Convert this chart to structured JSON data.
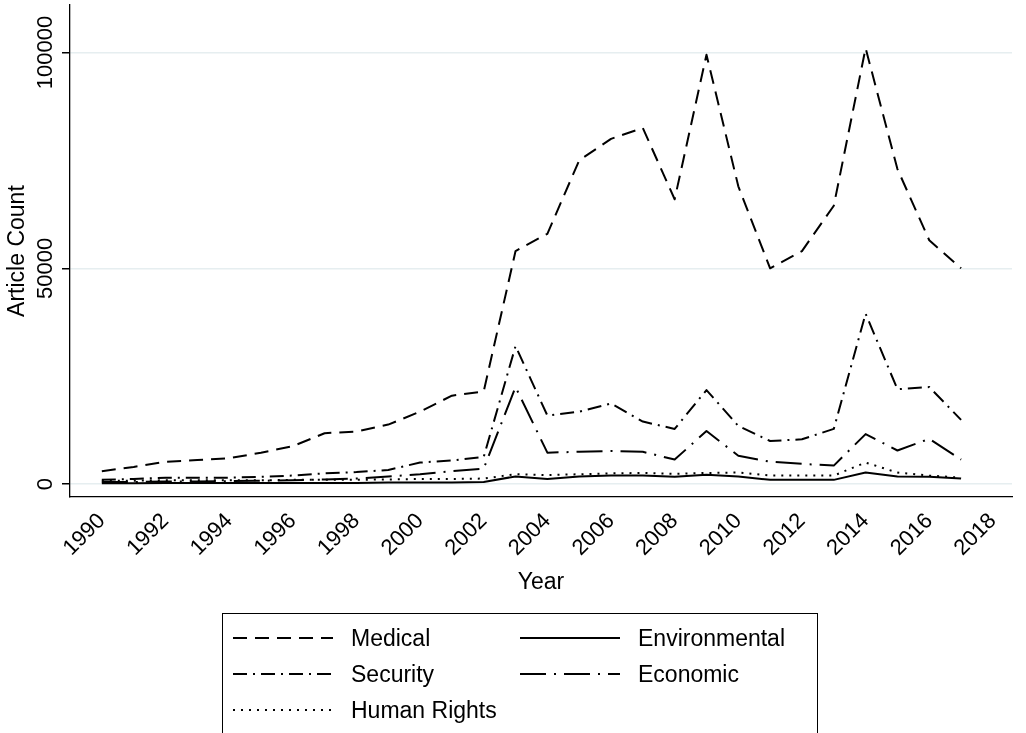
{
  "chart_data": {
    "type": "line",
    "xlabel": "Year",
    "ylabel": "Article Count",
    "x": [
      1990,
      1991,
      1992,
      1993,
      1994,
      1995,
      1996,
      1997,
      1998,
      1999,
      2000,
      2001,
      2002,
      2003,
      2004,
      2005,
      2006,
      2007,
      2008,
      2009,
      2010,
      2011,
      2012,
      2013,
      2014,
      2015,
      2016,
      2017
    ],
    "xlim": [
      1989,
      2018.6
    ],
    "xticks": [
      1990,
      1992,
      1994,
      1996,
      1998,
      2000,
      2002,
      2004,
      2006,
      2008,
      2010,
      2012,
      2014,
      2016,
      2018
    ],
    "ylim": [
      -3000,
      111000
    ],
    "yticks": [
      0,
      50000,
      100000
    ],
    "grid": "y",
    "legend": "bottom",
    "marker": "none",
    "series": [
      {
        "name": "Medical",
        "color": "#000000",
        "line_style": "dashed",
        "values": [
          3000,
          4000,
          5200,
          5600,
          6000,
          7300,
          8800,
          11800,
          12200,
          13800,
          16800,
          20500,
          21500,
          54000,
          58000,
          75000,
          80000,
          82500,
          66000,
          99500,
          69000,
          50000,
          54000,
          64500,
          101000,
          73000,
          56500,
          50000
        ]
      },
      {
        "name": "Security",
        "color": "#000000",
        "line_style": "dashdot",
        "values": [
          1000,
          1200,
          1500,
          1500,
          1500,
          1700,
          2000,
          2500,
          2800,
          3300,
          5000,
          5500,
          6300,
          32000,
          15900,
          16800,
          18700,
          14500,
          12800,
          21800,
          13500,
          10000,
          10400,
          12800,
          39500,
          22000,
          22500,
          14900
        ]
      },
      {
        "name": "Human Rights",
        "color": "#000000",
        "line_style": "dotted",
        "values": [
          800,
          800,
          900,
          900,
          900,
          900,
          1000,
          1000,
          1000,
          1100,
          1200,
          1200,
          1300,
          2300,
          2100,
          2300,
          2500,
          2600,
          2400,
          2600,
          2700,
          2000,
          2000,
          2000,
          5000,
          2700,
          2000,
          1500
        ]
      },
      {
        "name": "Environmental",
        "color": "#000000",
        "line_style": "solid",
        "values": [
          200,
          200,
          300,
          300,
          300,
          300,
          300,
          300,
          300,
          400,
          400,
          400,
          500,
          1800,
          1200,
          1800,
          2000,
          2000,
          1700,
          2200,
          1800,
          1000,
          1000,
          1000,
          2700,
          1800,
          1700,
          1300
        ]
      },
      {
        "name": "Economic",
        "color": "#000000",
        "line_style": "longdashdot",
        "values": [
          500,
          500,
          600,
          600,
          700,
          800,
          900,
          1100,
          1300,
          1800,
          2300,
          3000,
          3600,
          22500,
          7300,
          7500,
          7700,
          7500,
          5700,
          12300,
          6600,
          5200,
          4700,
          4300,
          11600,
          7800,
          10500,
          5700
        ]
      }
    ]
  }
}
